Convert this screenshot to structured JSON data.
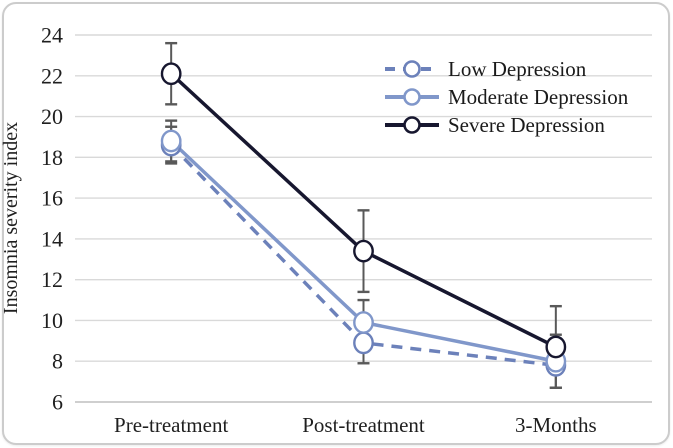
{
  "figure": {
    "background": "#ffffff",
    "border_color": "#cccccc"
  },
  "chart_data": {
    "type": "line",
    "title": "",
    "xlabel": "",
    "ylabel": "Insomnia severity index",
    "categories": [
      "Pre-treatment",
      "Post-treatment",
      "3-Months"
    ],
    "y_axis": {
      "min": 6,
      "max": 24,
      "tick_step": 2,
      "ticks": [
        6,
        8,
        10,
        12,
        14,
        16,
        18,
        20,
        22,
        24
      ]
    },
    "grid": true,
    "legend_position": "top-right",
    "series": [
      {
        "name": "Low Depression",
        "values": [
          18.6,
          8.9,
          7.8
        ],
        "errors": [
          0.9,
          1.0,
          1.1
        ],
        "color": "#6c81ba",
        "line_style": "dashed",
        "marker": "open-circle"
      },
      {
        "name": "Moderate Depression",
        "values": [
          18.8,
          9.9,
          8.0
        ],
        "errors": [
          1.0,
          1.1,
          1.3
        ],
        "color": "#8097ca",
        "line_style": "solid",
        "marker": "open-circle"
      },
      {
        "name": "Severe Depression",
        "values": [
          22.1,
          13.4,
          8.7
        ],
        "errors": [
          1.5,
          2.0,
          2.0
        ],
        "color": "#17172f",
        "line_style": "solid",
        "marker": "open-circle"
      }
    ],
    "colors": {
      "gridline": "#d9d9d9",
      "axis_line": "#bfbfbf",
      "error_bar": "#595959",
      "text": "#1f1f1f"
    }
  }
}
